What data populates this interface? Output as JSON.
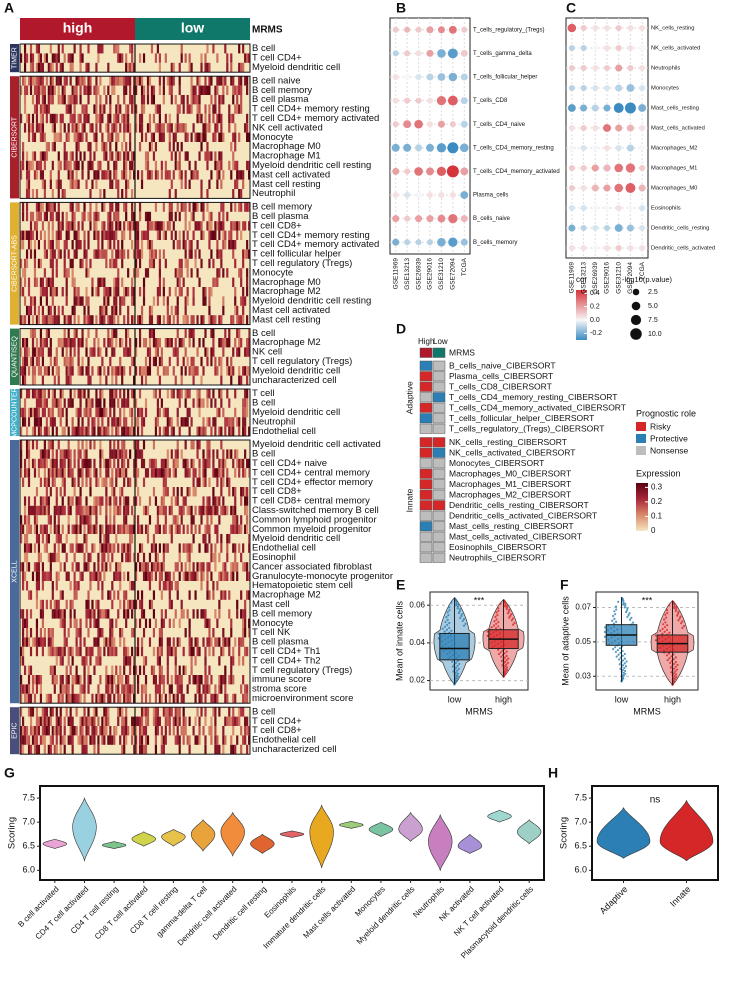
{
  "chart_data": [
    {
      "type": "heatmap",
      "panel": "A",
      "columns": [
        {
          "name": "high",
          "color": "#b2182b"
        },
        {
          "name": "low",
          "color": "#10786a"
        }
      ],
      "annotation_title": "MRMS",
      "groups": [
        {
          "name": "TIMER",
          "color": "#2c3560",
          "rows": [
            "B cell",
            "T cell CD4+",
            "Myeloid dendritic cell"
          ]
        },
        {
          "name": "CIBERSORT",
          "color": "#a8202a",
          "rows": [
            "B cell naive",
            "B cell memory",
            "B cell plasma",
            "T cell CD4+ memory resting",
            "T cell CD4+ memory activated",
            "NK cell activated",
            "Monocyte",
            "Macrophage M0",
            "Macrophage M1",
            "Myeloid dendritic cell resting",
            "Mast cell activated",
            "Mast cell resting",
            "Neutrophil"
          ]
        },
        {
          "name": "CIBERSORT-ABS",
          "color": "#e0b030",
          "rows": [
            "B cell memory",
            "B cell plasma",
            "T cell CD8+",
            "T cell CD4+ memory resting",
            "T cell CD4+ memory activated",
            "T cell follicular helper",
            "T cell regulatory (Tregs)",
            "Monocyte",
            "Macrophage M0",
            "Macrophage M2",
            "Myeloid dendritic cell resting",
            "Mast cell activated",
            "Mast cell resting"
          ]
        },
        {
          "name": "QUANTISEQ",
          "color": "#2f7a4e",
          "rows": [
            "B cell",
            "Macrophage M2",
            "NK cell",
            "T cell regulatory (Tregs)",
            "Myeloid dendritic cell",
            "uncharacterized cell"
          ]
        },
        {
          "name": "MCPCOUNTER",
          "color": "#40b0c8",
          "rows": [
            "T cell",
            "B cell",
            "Myeloid dendritic cell",
            "Neutrophil",
            "Endothelial cell"
          ]
        },
        {
          "name": "XCELL",
          "color": "#4a6a9a",
          "rows": [
            "Myeloid dendritic cell activated",
            "B cell",
            "T cell CD4+ naive",
            "T cell CD4+ central memory",
            "T cell CD4+ effector memory",
            "T cell CD8+",
            "T cell CD8+ central memory",
            "Class-switched memory B cell",
            "Common lymphoid progenitor",
            "Common myeloid progenitor",
            "Myeloid dendritic cell",
            "Endothelial cell",
            "Eosinophil",
            "Cancer associated fibroblast",
            "Granulocyte-monocyte progenitor",
            "Hematopoietic stem cell",
            "Macrophage M2",
            "Mast cell",
            "B cell memory",
            "Monocyte",
            "T cell NK",
            "B cell plasma",
            "T cell CD4+ Th1",
            "T cell CD4+ Th2",
            "T cell regulatory (Tregs)",
            "immune score",
            "stroma score",
            "microenvironment score"
          ]
        },
        {
          "name": "EPIC",
          "color": "#4a4e7a",
          "rows": [
            "B cell",
            "T cell CD4+",
            "T cell CD8+",
            "Endothelial cell",
            "uncharacterized cell"
          ]
        }
      ],
      "legend": {
        "title": "Expression",
        "colors": [
          "#f5e6c0",
          "#d98a6a",
          "#a8283a",
          "#5a0010"
        ],
        "lim": [
          0,
          0.33
        ],
        "ticks": [
          0.3,
          0.2,
          0.1,
          0
        ]
      }
    },
    {
      "type": "dot",
      "panel": "B",
      "columns": [
        "GSE11969",
        "GSE13213",
        "GSE26939",
        "GSE29016",
        "GSE31210",
        "GSE72094",
        "TCGA"
      ],
      "rows": [
        "T_cells_regulatory_(Tregs)",
        "T_cells_gamma_delta",
        "T_cells_follicular_helper",
        "T_cells_CD8",
        "T_cells_CD4_naive",
        "T_cells_CD4_memory_resting",
        "T_cells_CD4_memory_activated",
        "Plasma_cells",
        "B_cells_naive",
        "B_cells_memory"
      ],
      "cor": [
        [
          0.1,
          0.15,
          0.1,
          0.2,
          0.25,
          0.3,
          0.1
        ],
        [
          -0.1,
          0.1,
          0.05,
          0.2,
          -0.2,
          -0.25,
          0.1
        ],
        [
          0.05,
          0,
          -0.05,
          -0.1,
          -0.15,
          -0.2,
          -0.1
        ],
        [
          0.05,
          0.1,
          0.1,
          0.05,
          0.3,
          0.35,
          -0.1
        ],
        [
          0.1,
          0.25,
          0.3,
          0.05,
          0.2,
          0.1,
          -0.1
        ],
        [
          -0.2,
          -0.2,
          -0.1,
          -0.2,
          -0.25,
          -0.3,
          -0.2
        ],
        [
          0.2,
          0.1,
          0.3,
          0.25,
          0.35,
          0.45,
          0.2
        ],
        [
          0.05,
          -0.05,
          0,
          0.05,
          0.05,
          0.05,
          -0.2
        ],
        [
          0.2,
          0.1,
          0.2,
          0.2,
          0.25,
          0.3,
          0.15
        ],
        [
          -0.2,
          -0.1,
          -0.1,
          -0.1,
          -0.2,
          -0.25,
          -0.15
        ]
      ],
      "size": [
        [
          2,
          2,
          2,
          3,
          3,
          4,
          2
        ],
        [
          2,
          2,
          2,
          3,
          5,
          7,
          3
        ],
        [
          2,
          2,
          2,
          3,
          4,
          5,
          3
        ],
        [
          2,
          2,
          2,
          2,
          6,
          7,
          3
        ],
        [
          2,
          4,
          5,
          2,
          3,
          2,
          3
        ],
        [
          4,
          4,
          3,
          4,
          6,
          9,
          5
        ],
        [
          3,
          2,
          5,
          4,
          6,
          11,
          4
        ],
        [
          2,
          2,
          2,
          2,
          2,
          2,
          4
        ],
        [
          3,
          2,
          3,
          3,
          4,
          6,
          3
        ],
        [
          3,
          2,
          2,
          2,
          5,
          6,
          3
        ]
      ],
      "cor_lim": [
        -0.3,
        0.45
      ],
      "size_lim": [
        0,
        11
      ],
      "colors": {
        "negative": "#3b8bc2",
        "zero": "#f7f7f7",
        "positive": "#d6333a"
      },
      "color_legend": {
        "title": "cor",
        "ticks": [
          0.4,
          0.2,
          {
            "value": 0,
            "label": "0.0"
          },
          -0.2
        ]
      },
      "size_legend": {
        "title": "-log10(p.value)",
        "ticks": [
          2.5,
          {
            "value": 5,
            "label": "5.0"
          },
          7.5,
          {
            "value": 10,
            "label": "10.0"
          }
        ]
      }
    },
    {
      "type": "dot",
      "panel": "C",
      "columns": [
        "GSE11969",
        "GSE13213",
        "GSE26939",
        "GSE29016",
        "GSE31210",
        "GSE72094",
        "TCGA"
      ],
      "rows": [
        "NK_cells_resting",
        "NK_cells_activated",
        "Neutrophils",
        "Monocytes",
        "Mast_cells_resting",
        "Mast_cells_activated",
        "Macrophages_M2",
        "Macrophages_M1",
        "Macrophages_M0",
        "Eosinophils",
        "Dendritic_cells_resting",
        "Dendritic_cells_activated"
      ],
      "cor": [
        [
          0.35,
          0.1,
          0.05,
          0.05,
          0.1,
          0.05,
          0.05
        ],
        [
          -0.1,
          -0.1,
          0,
          0.05,
          0.1,
          0.05,
          0
        ],
        [
          0.1,
          0.1,
          0.05,
          0.1,
          0.2,
          0.1,
          0.05
        ],
        [
          -0.1,
          -0.1,
          -0.05,
          -0.05,
          -0.1,
          -0.15,
          -0.05
        ],
        [
          -0.25,
          -0.2,
          -0.1,
          -0.2,
          -0.3,
          -0.3,
          -0.2
        ],
        [
          0.05,
          0.1,
          0.05,
          0.3,
          0.2,
          0.15,
          0.05
        ],
        [
          0,
          -0.05,
          0,
          0.05,
          -0.05,
          -0.1,
          0
        ],
        [
          0.1,
          0.1,
          0.2,
          0.15,
          0.3,
          0.3,
          0.1
        ],
        [
          0.1,
          0.05,
          0.15,
          0.2,
          0.3,
          0.35,
          0.15
        ],
        [
          -0.05,
          -0.05,
          0,
          0,
          0.05,
          0,
          -0.05
        ],
        [
          -0.2,
          -0.1,
          -0.05,
          -0.1,
          -0.2,
          -0.15,
          -0.05
        ],
        [
          0.05,
          0.05,
          0,
          0.05,
          0.1,
          0.05,
          0.05
        ]
      ],
      "size": [
        [
          5,
          2,
          2,
          2,
          2,
          2,
          2
        ],
        [
          2,
          2,
          2,
          2,
          2,
          2,
          2
        ],
        [
          2,
          2,
          2,
          2,
          3,
          2,
          2
        ],
        [
          2,
          2,
          2,
          2,
          3,
          4,
          2
        ],
        [
          4,
          3,
          3,
          3,
          7,
          9,
          4
        ],
        [
          2,
          2,
          2,
          4,
          3,
          3,
          2
        ],
        [
          2,
          2,
          2,
          2,
          2,
          3,
          2
        ],
        [
          2,
          2,
          3,
          3,
          5,
          6,
          2
        ],
        [
          2,
          2,
          3,
          3,
          5,
          7,
          3
        ],
        [
          2,
          2,
          2,
          2,
          2,
          2,
          2
        ],
        [
          3,
          2,
          2,
          2,
          4,
          3,
          2
        ],
        [
          2,
          2,
          2,
          2,
          2,
          2,
          2
        ]
      ],
      "cor_lim": [
        -0.3,
        0.45
      ],
      "size_lim": [
        0,
        11
      ],
      "colors": {
        "negative": "#3b8bc2",
        "zero": "#f7f7f7",
        "positive": "#d6333a"
      }
    },
    {
      "type": "tile",
      "panel": "D",
      "columns": [
        "High",
        "Low"
      ],
      "column_colors": [
        "#b2182b",
        "#10786a"
      ],
      "annotation": "MRMS",
      "groups": [
        {
          "name": "Adaptive",
          "rows": [
            {
              "label": "B_cells_naive_CIBERSORT",
              "high": "Protective",
              "low": "Nonsense"
            },
            {
              "label": "Plasma_cells_CIBERSORT",
              "high": "Risky",
              "low": "Nonsense"
            },
            {
              "label": "T_cells_CD8_CIBERSORT",
              "high": "Risky",
              "low": "Nonsense"
            },
            {
              "label": "T_cells_CD4_memory_resting_CIBERSORT",
              "high": "Nonsense",
              "low": "Protective"
            },
            {
              "label": "T_cells_CD4_memory_activated_CIBERSORT",
              "high": "Risky",
              "low": "Nonsense"
            },
            {
              "label": "T_cells_follicular_helper_CIBERSORT",
              "high": "Protective",
              "low": "Nonsense"
            },
            {
              "label": "T_cells_regulatory_(Tregs)_CIBERSORT",
              "high": "Nonsense",
              "low": "Nonsense"
            }
          ]
        },
        {
          "name": "Innate",
          "rows": [
            {
              "label": "NK_cells_resting_CIBERSORT",
              "high": "Risky",
              "low": "Risky"
            },
            {
              "label": "NK_cells_activated_CIBERSORT",
              "high": "Risky",
              "low": "Protective"
            },
            {
              "label": "Monocytes_CIBERSORT",
              "high": "Nonsense",
              "low": "Nonsense"
            },
            {
              "label": "Macrophages_M0_CIBERSORT",
              "high": "Risky",
              "low": "Nonsense"
            },
            {
              "label": "Macrophages_M1_CIBERSORT",
              "high": "Risky",
              "low": "Nonsense"
            },
            {
              "label": "Macrophages_M2_CIBERSORT",
              "high": "Risky",
              "low": "Nonsense"
            },
            {
              "label": "Dendritic_cells_resting_CIBERSORT",
              "high": "Risky",
              "low": "Risky"
            },
            {
              "label": "Dendritic_cells_activated_CIBERSORT",
              "high": "Nonsense",
              "low": "Nonsense"
            },
            {
              "label": "Mast_cells_resting_CIBERSORT",
              "high": "Protective",
              "low": "Nonsense"
            },
            {
              "label": "Mast_cells_activated_CIBERSORT",
              "high": "Nonsense",
              "low": "Nonsense"
            },
            {
              "label": "Eosinophils_CIBERSORT",
              "high": "Nonsense",
              "low": "Nonsense"
            },
            {
              "label": "Neutrophils_CIBERSORT",
              "high": "Nonsense",
              "low": "Nonsense"
            }
          ]
        }
      ],
      "legend": {
        "title": "Prognostic role",
        "items": [
          {
            "name": "Risky",
            "color": "#d62728"
          },
          {
            "name": "Protective",
            "color": "#2b7fb5"
          },
          {
            "name": "Nonsense",
            "color": "#bdbdbd"
          }
        ]
      }
    },
    {
      "type": "box",
      "panel": "E",
      "ylabel": "Mean of innate cells",
      "xlabel": "MRMS",
      "annotation": "***",
      "categories": [
        "low",
        "high"
      ],
      "colors": [
        "#2b7fb5",
        "#d62728"
      ],
      "boxes": [
        {
          "min": 0.018,
          "q1": 0.031,
          "median": 0.037,
          "q3": 0.045,
          "max": 0.064
        },
        {
          "min": 0.022,
          "q1": 0.037,
          "median": 0.042,
          "q3": 0.047,
          "max": 0.063
        }
      ],
      "ylim": [
        0.015,
        0.067
      ],
      "yticks": [
        0.02,
        0.04,
        0.06
      ],
      "grid": true
    },
    {
      "type": "box",
      "panel": "F",
      "ylabel": "Mean of adaptive cells",
      "xlabel": "MRMS",
      "annotation": "***",
      "categories": [
        "low",
        "high"
      ],
      "colors": [
        "#2b7fb5",
        "#d62728"
      ],
      "boxes": [
        {
          "min": 0.027,
          "q1": 0.048,
          "median": 0.054,
          "q3": 0.06,
          "max": 0.076
        },
        {
          "min": 0.025,
          "q1": 0.044,
          "median": 0.049,
          "q3": 0.054,
          "max": 0.074
        }
      ],
      "ylim": [
        0.022,
        0.079
      ],
      "yticks": [
        0.03,
        0.05,
        0.07
      ],
      "grid": true
    },
    {
      "type": "violin",
      "panel": "G",
      "ylabel": "Scoring",
      "categories": [
        "B cell activated",
        "CD4 T cell activated",
        "CD4 T cell resting",
        "CD8 T cell activated",
        "CD8 T cell resting",
        "gamma-delta T cell",
        "Dendritic cell activated",
        "Dendritic cell resting",
        "Eosinophils",
        "Immature dendritic cells",
        "Mast  cells activated",
        "Monocytes",
        "Myeloid dendritic cells",
        "Neutrophils",
        "NK activated",
        "NK T cell activated",
        "Plasmacytoid dendritic cells"
      ],
      "violins": [
        {
          "min": 6.45,
          "max": 6.65,
          "peak": 6.55,
          "color": "#e7a4d4"
        },
        {
          "min": 6.2,
          "max": 7.5,
          "peak": 6.9,
          "color": "#9ad1e0"
        },
        {
          "min": 6.45,
          "max": 6.6,
          "peak": 6.52,
          "color": "#7cc48c"
        },
        {
          "min": 6.5,
          "max": 6.8,
          "peak": 6.65,
          "color": "#cfd44a"
        },
        {
          "min": 6.5,
          "max": 6.85,
          "peak": 6.7,
          "color": "#e6c24a"
        },
        {
          "min": 6.4,
          "max": 7.05,
          "peak": 6.75,
          "color": "#e8a43a"
        },
        {
          "min": 6.3,
          "max": 7.2,
          "peak": 6.8,
          "color": "#f08c3c"
        },
        {
          "min": 6.35,
          "max": 6.75,
          "peak": 6.55,
          "color": "#e0642f"
        },
        {
          "min": 6.68,
          "max": 6.82,
          "peak": 6.75,
          "color": "#e36464"
        },
        {
          "min": 6.05,
          "max": 7.35,
          "peak": 6.8,
          "color": "#e8a820"
        },
        {
          "min": 6.87,
          "max": 7.02,
          "peak": 6.94,
          "color": "#9ccc7a"
        },
        {
          "min": 6.7,
          "max": 7.0,
          "peak": 6.85,
          "color": "#7ac4a4"
        },
        {
          "min": 6.6,
          "max": 7.2,
          "peak": 6.85,
          "color": "#c9a0d0"
        },
        {
          "min": 6.0,
          "max": 7.15,
          "peak": 6.6,
          "color": "#c77fc0"
        },
        {
          "min": 6.35,
          "max": 6.75,
          "peak": 6.5,
          "color": "#a890d8"
        },
        {
          "min": 7.0,
          "max": 7.25,
          "peak": 7.12,
          "color": "#9fd8d0"
        },
        {
          "min": 6.55,
          "max": 7.05,
          "peak": 6.8,
          "color": "#9fd0c8"
        }
      ],
      "ylim": [
        5.8,
        7.75
      ],
      "yticks": [
        {
          "value": 6,
          "label": "6.0"
        },
        6.5,
        {
          "value": 7,
          "label": "7.0"
        },
        7.5
      ]
    },
    {
      "type": "violin",
      "panel": "H",
      "ylabel": "Scoring",
      "annotation": "ns",
      "categories": [
        "Adaptive",
        "Innate"
      ],
      "violins": [
        {
          "min": 6.25,
          "max": 7.3,
          "peak": 6.6,
          "color": "#2b7fb5"
        },
        {
          "min": 6.2,
          "max": 7.45,
          "peak": 6.6,
          "color": "#d62728"
        }
      ],
      "ylim": [
        5.8,
        7.75
      ],
      "yticks": [
        {
          "value": 6,
          "label": "6.0"
        },
        6.5,
        {
          "value": 7,
          "label": "7.0"
        },
        7.5
      ]
    }
  ]
}
